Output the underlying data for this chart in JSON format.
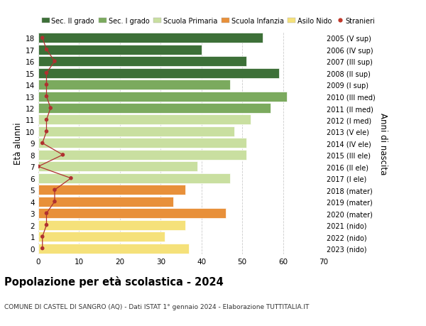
{
  "ages": [
    0,
    1,
    2,
    3,
    4,
    5,
    6,
    7,
    8,
    9,
    10,
    11,
    12,
    13,
    14,
    15,
    16,
    17,
    18
  ],
  "bar_values": [
    37,
    31,
    36,
    46,
    33,
    36,
    47,
    39,
    51,
    51,
    48,
    52,
    57,
    61,
    47,
    59,
    51,
    40,
    55
  ],
  "bar_colors": [
    "#f5e17a",
    "#f5e17a",
    "#f5e17a",
    "#e8903a",
    "#e8903a",
    "#e8903a",
    "#c9dfa0",
    "#c9dfa0",
    "#c9dfa0",
    "#c9dfa0",
    "#c9dfa0",
    "#c9dfa0",
    "#7baa5e",
    "#7baa5e",
    "#7baa5e",
    "#3d7038",
    "#3d7038",
    "#3d7038",
    "#3d7038"
  ],
  "stranieri_values": [
    1,
    1,
    2,
    2,
    4,
    4,
    8,
    0,
    6,
    1,
    2,
    2,
    3,
    2,
    2,
    2,
    4,
    2,
    1
  ],
  "right_labels": [
    "2023 (nido)",
    "2022 (nido)",
    "2021 (nido)",
    "2020 (mater)",
    "2019 (mater)",
    "2018 (mater)",
    "2017 (I ele)",
    "2016 (II ele)",
    "2015 (III ele)",
    "2014 (IV ele)",
    "2013 (V ele)",
    "2012 (I med)",
    "2011 (II med)",
    "2010 (III med)",
    "2009 (I sup)",
    "2008 (II sup)",
    "2007 (III sup)",
    "2006 (IV sup)",
    "2005 (V sup)"
  ],
  "ylabel_left": "Età alunni",
  "ylabel_right": "Anni di nascita",
  "xlim": [
    0,
    70
  ],
  "xticks": [
    0,
    10,
    20,
    30,
    40,
    50,
    60,
    70
  ],
  "title": "Popolazione per età scolastica - 2024",
  "subtitle": "COMUNE DI CASTEL DI SANGRO (AQ) - Dati ISTAT 1° gennaio 2024 - Elaborazione TUTTITALIA.IT",
  "legend_labels": [
    "Sec. II grado",
    "Sec. I grado",
    "Scuola Primaria",
    "Scuola Infanzia",
    "Asilo Nido",
    "Stranieri"
  ],
  "legend_colors": [
    "#3d7038",
    "#7baa5e",
    "#c9dfa0",
    "#e8903a",
    "#f5e17a",
    "#c0392b"
  ],
  "bar_edge_color": "#ffffff",
  "grid_color": "#cccccc",
  "background_color": "#ffffff",
  "stranieri_line_color": "#b03030",
  "stranieri_dot_color": "#b03030"
}
